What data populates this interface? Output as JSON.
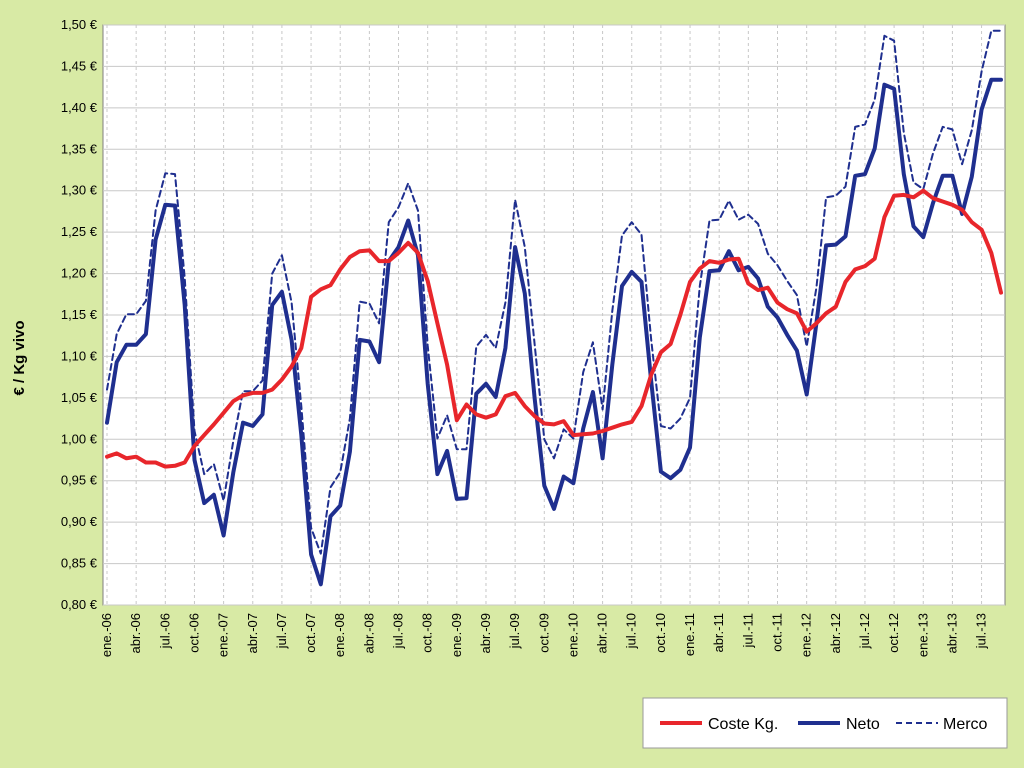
{
  "chart_data": {
    "type": "line",
    "ylabel": "€ / Kg vivo",
    "ylim": [
      0.8,
      1.5
    ],
    "yticks": [
      "0,80 €",
      "0,85 €",
      "0,90 €",
      "0,95 €",
      "1,00 €",
      "1,05 €",
      "1,10 €",
      "1,15 €",
      "1,20 €",
      "1,25 €",
      "1,30 €",
      "1,35 €",
      "1,40 €",
      "1,45 €",
      "1,50 €"
    ],
    "xticks": [
      "ene.-06",
      "abr.-06",
      "jul.-06",
      "oct.-06",
      "ene.-07",
      "abr.-07",
      "jul.-07",
      "oct.-07",
      "ene.-08",
      "abr.-08",
      "jul.-08",
      "oct.-08",
      "ene.-09",
      "abr.-09",
      "jul.-09",
      "oct.-09",
      "ene.-10",
      "abr.-10",
      "jul.-10",
      "oct.-10",
      "ene.-11",
      "abr.-11",
      "jul.-11",
      "oct.-11",
      "ene.-12",
      "abr.-12",
      "jul.-12",
      "oct.-12",
      "ene.-13",
      "abr.-13",
      "jul.-13"
    ],
    "grid": true,
    "legend": "bottom-right",
    "series": [
      {
        "name": "Coste Kg.",
        "color": "#e8262b",
        "style": "solid",
        "values": [
          0.979,
          0.983,
          0.977,
          0.979,
          0.972,
          0.972,
          0.967,
          0.968,
          0.972,
          0.992,
          1.005,
          1.018,
          1.032,
          1.046,
          1.053,
          1.056,
          1.056,
          1.06,
          1.072,
          1.088,
          1.11,
          1.172,
          1.181,
          1.186,
          1.205,
          1.22,
          1.227,
          1.228,
          1.215,
          1.215,
          1.225,
          1.237,
          1.225,
          1.191,
          1.14,
          1.09,
          1.023,
          1.042,
          1.03,
          1.026,
          1.03,
          1.052,
          1.056,
          1.04,
          1.028,
          1.019,
          1.018,
          1.022,
          1.005,
          1.006,
          1.007,
          1.01,
          1.014,
          1.018,
          1.021,
          1.04,
          1.078,
          1.105,
          1.115,
          1.15,
          1.19,
          1.206,
          1.215,
          1.213,
          1.217,
          1.218,
          1.188,
          1.18,
          1.183,
          1.165,
          1.157,
          1.152,
          1.13,
          1.14,
          1.152,
          1.16,
          1.19,
          1.205,
          1.209,
          1.218,
          1.268,
          1.294,
          1.295,
          1.292,
          1.3,
          1.291,
          1.287,
          1.283,
          1.277,
          1.262,
          1.253,
          1.225,
          1.177
        ]
      },
      {
        "name": "Neto",
        "color": "#1f2f8f",
        "style": "solid",
        "values": [
          1.02,
          1.093,
          1.114,
          1.114,
          1.127,
          1.241,
          1.283,
          1.282,
          1.162,
          0.975,
          0.923,
          0.933,
          0.884,
          0.96,
          1.02,
          1.016,
          1.03,
          1.162,
          1.178,
          1.12,
          1.005,
          0.861,
          0.825,
          0.907,
          0.92,
          0.985,
          1.12,
          1.118,
          1.093,
          1.215,
          1.232,
          1.264,
          1.222,
          1.067,
          0.958,
          0.986,
          0.928,
          0.929,
          1.055,
          1.067,
          1.051,
          1.11,
          1.232,
          1.176,
          1.05,
          0.944,
          0.916,
          0.955,
          0.947,
          1.013,
          1.057,
          0.977,
          1.09,
          1.185,
          1.202,
          1.19,
          1.07,
          0.961,
          0.953,
          0.963,
          0.99,
          1.123,
          1.203,
          1.204,
          1.227,
          1.204,
          1.208,
          1.194,
          1.16,
          1.147,
          1.126,
          1.107,
          1.054,
          1.14,
          1.234,
          1.235,
          1.245,
          1.318,
          1.32,
          1.351,
          1.428,
          1.423,
          1.32,
          1.257,
          1.244,
          1.285,
          1.318,
          1.318,
          1.272,
          1.317,
          1.398,
          1.434,
          1.434
        ]
      },
      {
        "name": "Merco",
        "color": "#1f2f8f",
        "style": "dashed",
        "values": [
          1.06,
          1.127,
          1.151,
          1.151,
          1.167,
          1.276,
          1.321,
          1.32,
          1.195,
          1.01,
          0.958,
          0.97,
          0.926,
          0.998,
          1.058,
          1.058,
          1.071,
          1.2,
          1.222,
          1.165,
          1.04,
          0.893,
          0.862,
          0.942,
          0.96,
          1.025,
          1.166,
          1.164,
          1.14,
          1.262,
          1.28,
          1.309,
          1.276,
          1.113,
          1.001,
          1.029,
          0.988,
          0.988,
          1.112,
          1.126,
          1.11,
          1.165,
          1.289,
          1.232,
          1.115,
          1.0,
          0.977,
          1.012,
          1.001,
          1.081,
          1.117,
          1.036,
          1.155,
          1.246,
          1.262,
          1.247,
          1.12,
          1.016,
          1.013,
          1.025,
          1.05,
          1.185,
          1.264,
          1.265,
          1.288,
          1.265,
          1.271,
          1.26,
          1.224,
          1.21,
          1.191,
          1.174,
          1.112,
          1.183,
          1.292,
          1.294,
          1.305,
          1.377,
          1.38,
          1.41,
          1.487,
          1.481,
          1.37,
          1.31,
          1.302,
          1.345,
          1.377,
          1.374,
          1.332,
          1.373,
          1.444,
          1.493,
          1.493
        ]
      }
    ]
  }
}
